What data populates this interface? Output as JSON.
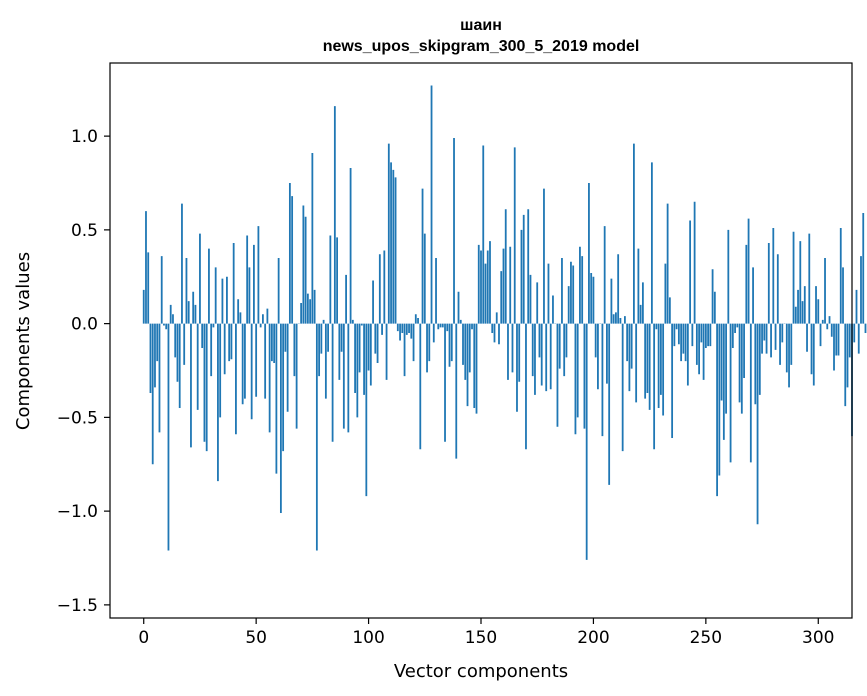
{
  "chart_data": {
    "type": "bar",
    "title": "шаин",
    "subtitle": "news_upos_skipgram_300_5_2019 model",
    "xlabel": "Vector components",
    "ylabel": "Components values",
    "xlim": [
      -15,
      315
    ],
    "ylim": [
      -1.57,
      1.39
    ],
    "xticks": [
      0,
      50,
      100,
      150,
      200,
      250,
      300
    ],
    "yticks": [
      -1.5,
      -1.0,
      -0.5,
      0.0,
      0.5,
      1.0
    ],
    "ytick_labels": [
      "−1.5",
      "−1.0",
      "−0.5",
      "0.0",
      "0.5",
      "1.0"
    ],
    "grid": false,
    "legend": "none",
    "bar_color": "#1f77b4",
    "x_start": 0,
    "values": [
      0.18,
      0.6,
      0.38,
      -0.37,
      -0.75,
      -0.34,
      -0.2,
      -0.58,
      0.36,
      -0.01,
      -0.03,
      -1.21,
      0.1,
      0.05,
      -0.18,
      -0.31,
      -0.45,
      0.64,
      -0.22,
      0.35,
      0.12,
      -0.66,
      0.17,
      0.1,
      -0.46,
      0.48,
      -0.13,
      -0.63,
      -0.68,
      0.4,
      -0.28,
      -0.02,
      0.3,
      -0.84,
      -0.5,
      0.24,
      -0.27,
      0.25,
      -0.2,
      -0.19,
      0.43,
      -0.59,
      0.13,
      0.06,
      -0.43,
      -0.4,
      0.47,
      0.3,
      -0.51,
      0.42,
      -0.39,
      0.52,
      -0.02,
      0.05,
      -0.4,
      0.08,
      -0.58,
      -0.2,
      -0.21,
      -0.8,
      0.35,
      -1.01,
      -0.68,
      -0.15,
      -0.47,
      0.75,
      0.68,
      -0.28,
      -0.56,
      0.0,
      0.11,
      0.63,
      0.57,
      0.16,
      0.13,
      0.91,
      0.18,
      -1.21,
      -0.28,
      -0.16,
      0.02,
      -0.4,
      -0.15,
      0.47,
      -0.63,
      1.16,
      0.46,
      -0.3,
      -0.15,
      -0.56,
      0.26,
      -0.58,
      0.83,
      0.02,
      -0.37,
      -0.5,
      -0.26,
      -0.01,
      -0.38,
      -0.92,
      -0.25,
      -0.33,
      0.23,
      -0.16,
      -0.21,
      0.37,
      -0.06,
      0.39,
      -0.3,
      0.96,
      0.86,
      0.82,
      0.78,
      -0.04,
      -0.09,
      -0.05,
      -0.28,
      -0.06,
      -0.05,
      -0.08,
      -0.2,
      0.05,
      0.03,
      -0.67,
      0.72,
      0.48,
      -0.26,
      -0.2,
      1.27,
      -0.1,
      0.35,
      -0.03,
      -0.02,
      -0.02,
      -0.63,
      -0.04,
      -0.23,
      -0.2,
      0.99,
      -0.72,
      0.17,
      0.02,
      -0.22,
      -0.3,
      -0.44,
      -0.26,
      -0.03,
      -0.45,
      -0.48,
      0.42,
      0.39,
      0.95,
      0.32,
      0.39,
      0.44,
      -0.05,
      -0.1,
      0.06,
      -0.11,
      0.28,
      0.4,
      0.61,
      -0.3,
      0.41,
      -0.26,
      0.94,
      -0.47,
      -0.31,
      0.5,
      0.58,
      -0.67,
      0.61,
      0.26,
      -0.28,
      -0.38,
      0.22,
      -0.18,
      -0.33,
      0.72,
      -0.36,
      0.32,
      -0.35,
      0.15,
      0.0,
      -0.55,
      -0.24,
      0.35,
      -0.28,
      -0.18,
      0.2,
      0.33,
      0.31,
      -0.59,
      -0.5,
      0.41,
      0.36,
      -0.56,
      -1.26,
      0.75,
      0.27,
      0.25,
      -0.18,
      -0.35,
      0.0,
      -0.6,
      0.52,
      -0.32,
      -0.86,
      0.24,
      0.05,
      0.06,
      0.37,
      0.03,
      -0.68,
      0.04,
      -0.2,
      -0.36,
      -0.24,
      0.96,
      -0.42,
      0.4,
      0.1,
      0.22,
      -0.4,
      -0.37,
      -0.46,
      0.86,
      -0.67,
      -0.03,
      -0.45,
      -0.38,
      -0.49,
      0.32,
      0.64,
      0.14,
      -0.61,
      -0.12,
      -0.03,
      -0.11,
      -0.2,
      -0.16,
      -0.2,
      -0.33,
      0.55,
      -0.12,
      0.65,
      -0.22,
      -0.27,
      -0.1,
      -0.3,
      -0.13,
      -0.12,
      -0.12,
      0.29,
      0.17,
      -0.92,
      -0.81,
      -0.41,
      -0.62,
      -0.48,
      0.5,
      -0.74,
      -0.13,
      -0.05,
      -0.02,
      -0.42,
      -0.48,
      -0.29,
      0.42,
      0.56,
      -0.74,
      0.3,
      -0.43,
      -1.07,
      -0.38,
      -0.16,
      -0.09,
      -0.16,
      0.43,
      -0.18,
      0.51,
      -0.14,
      0.37,
      -0.22,
      -0.1,
      0.0,
      -0.26,
      -0.34,
      -0.22,
      0.49,
      0.09,
      0.18,
      0.44,
      0.12,
      0.2,
      -0.15,
      0.48,
      -0.27,
      -0.33,
      0.2,
      0.13,
      -0.12,
      0.02,
      0.35,
      -0.03,
      0.04,
      -0.07,
      -0.25,
      -0.17,
      -0.17,
      0.51,
      0.3,
      -0.44,
      -0.34,
      -0.18,
      -0.6,
      -0.1,
      0.18,
      -0.16,
      0.36,
      0.59,
      -0.05
    ]
  }
}
